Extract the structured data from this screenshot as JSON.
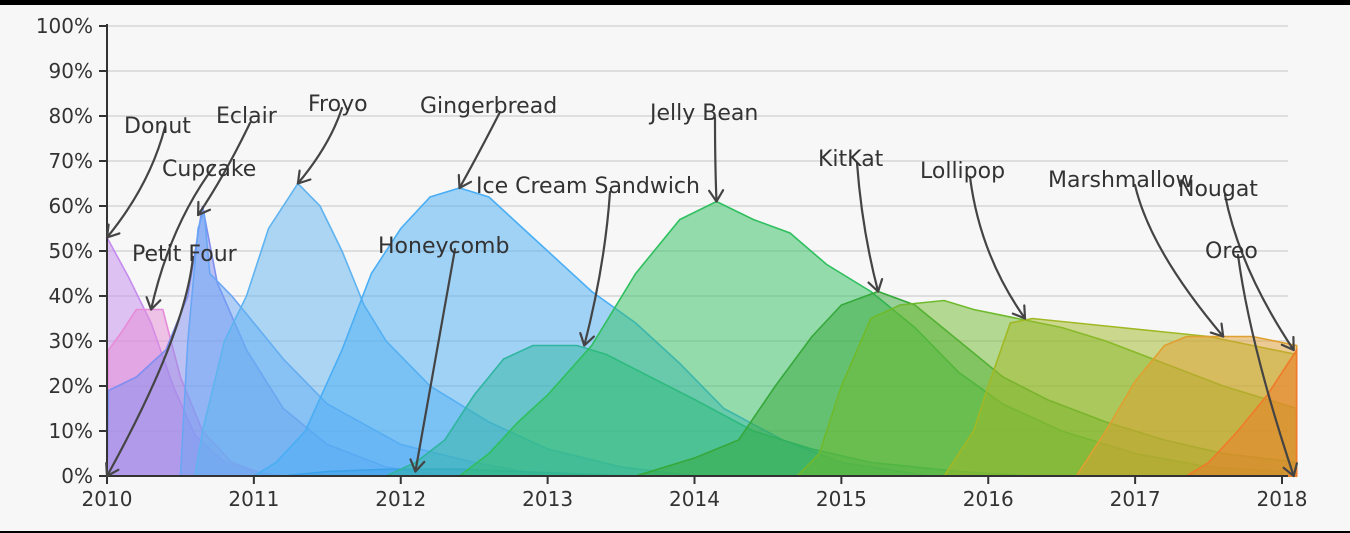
{
  "chart_data": {
    "type": "area",
    "title": "",
    "xlabel": "",
    "ylabel": "",
    "xlim": [
      2010,
      2018.1
    ],
    "ylim": [
      0,
      100
    ],
    "grid": true,
    "legend": "none",
    "x_ticks": [
      "2010",
      "2011",
      "2012",
      "2013",
      "2014",
      "2015",
      "2016",
      "2017",
      "2018"
    ],
    "y_ticks": [
      "0%",
      "10%",
      "20%",
      "30%",
      "40%",
      "50%",
      "60%",
      "70%",
      "80%",
      "90%",
      "100%"
    ],
    "series": [
      {
        "name": "Donut",
        "color": "#c58cf0",
        "points": [
          [
            2010.0,
            53
          ],
          [
            2010.15,
            44
          ],
          [
            2010.3,
            34
          ],
          [
            2010.45,
            20
          ],
          [
            2010.6,
            9
          ],
          [
            2010.8,
            3
          ],
          [
            2011.0,
            1
          ],
          [
            2011.2,
            0
          ]
        ]
      },
      {
        "name": "Petit Four",
        "color": "#e68bd8",
        "points": [
          [
            2010.0,
            0
          ],
          [
            2010.01,
            28
          ],
          [
            2010.1,
            32
          ],
          [
            2010.2,
            37
          ],
          [
            2010.38,
            37
          ],
          [
            2010.5,
            22
          ],
          [
            2010.65,
            10
          ],
          [
            2010.85,
            3
          ],
          [
            2011.1,
            0
          ]
        ]
      },
      {
        "name": "Cupcake",
        "color": "#7f8ef0",
        "points": [
          [
            2010.0,
            0
          ],
          [
            2010.01,
            19
          ],
          [
            2010.2,
            22
          ],
          [
            2010.4,
            28
          ],
          [
            2010.55,
            40
          ],
          [
            2010.65,
            60
          ],
          [
            2010.75,
            43
          ],
          [
            2010.95,
            28
          ],
          [
            2011.2,
            15
          ],
          [
            2011.5,
            7
          ],
          [
            2011.9,
            2
          ],
          [
            2012.3,
            0
          ]
        ]
      },
      {
        "name": "Eclair",
        "color": "#6aa6f5",
        "points": [
          [
            2010.5,
            0
          ],
          [
            2010.55,
            30
          ],
          [
            2010.62,
            55
          ],
          [
            2010.66,
            59
          ],
          [
            2010.7,
            45
          ],
          [
            2010.85,
            40
          ],
          [
            2011.0,
            34
          ],
          [
            2011.2,
            26
          ],
          [
            2011.5,
            16
          ],
          [
            2012.0,
            7
          ],
          [
            2012.5,
            3
          ],
          [
            2013.0,
            0
          ]
        ]
      },
      {
        "name": "Froyo",
        "color": "#5fb3f0",
        "points": [
          [
            2010.6,
            0
          ],
          [
            2010.65,
            10
          ],
          [
            2010.8,
            30
          ],
          [
            2010.95,
            40
          ],
          [
            2011.1,
            55
          ],
          [
            2011.3,
            65
          ],
          [
            2011.45,
            60
          ],
          [
            2011.6,
            50
          ],
          [
            2011.75,
            38
          ],
          [
            2011.9,
            30
          ],
          [
            2012.2,
            20
          ],
          [
            2012.6,
            12
          ],
          [
            2013.0,
            6
          ],
          [
            2013.5,
            2
          ],
          [
            2014.0,
            0
          ]
        ]
      },
      {
        "name": "Gingerbread",
        "color": "#4aaef5",
        "points": [
          [
            2011.0,
            0
          ],
          [
            2011.15,
            3
          ],
          [
            2011.35,
            10
          ],
          [
            2011.6,
            28
          ],
          [
            2011.8,
            45
          ],
          [
            2012.0,
            55
          ],
          [
            2012.2,
            62
          ],
          [
            2012.4,
            64
          ],
          [
            2012.6,
            62
          ],
          [
            2012.8,
            56
          ],
          [
            2013.0,
            50
          ],
          [
            2013.3,
            41
          ],
          [
            2013.6,
            34
          ],
          [
            2013.9,
            25
          ],
          [
            2014.2,
            15
          ],
          [
            2014.6,
            8
          ],
          [
            2015.0,
            3
          ],
          [
            2015.6,
            0
          ]
        ]
      },
      {
        "name": "Honeycomb",
        "color": "#3ca0e8",
        "points": [
          [
            2011.2,
            0
          ],
          [
            2011.5,
            1
          ],
          [
            2011.9,
            1.5
          ],
          [
            2012.4,
            1.5
          ],
          [
            2012.8,
            1
          ],
          [
            2013.2,
            0.5
          ],
          [
            2013.6,
            0
          ]
        ]
      },
      {
        "name": "Ice Cream Sandwich",
        "color": "#2fb5a0",
        "points": [
          [
            2011.9,
            0
          ],
          [
            2012.1,
            3
          ],
          [
            2012.3,
            8
          ],
          [
            2012.5,
            18
          ],
          [
            2012.7,
            26
          ],
          [
            2012.9,
            29
          ],
          [
            2013.2,
            29
          ],
          [
            2013.4,
            27
          ],
          [
            2013.7,
            22
          ],
          [
            2014.0,
            17
          ],
          [
            2014.4,
            10
          ],
          [
            2014.8,
            6
          ],
          [
            2015.2,
            3
          ],
          [
            2015.8,
            1
          ],
          [
            2016.3,
            0
          ]
        ]
      },
      {
        "name": "Jelly Bean",
        "color": "#2fbf5f",
        "points": [
          [
            2012.4,
            0
          ],
          [
            2012.6,
            5
          ],
          [
            2012.8,
            12
          ],
          [
            2013.0,
            18
          ],
          [
            2013.3,
            29
          ],
          [
            2013.6,
            45
          ],
          [
            2013.9,
            57
          ],
          [
            2014.15,
            61
          ],
          [
            2014.4,
            57
          ],
          [
            2014.65,
            54
          ],
          [
            2014.9,
            47
          ],
          [
            2015.2,
            41
          ],
          [
            2015.5,
            33
          ],
          [
            2015.8,
            23
          ],
          [
            2016.1,
            16
          ],
          [
            2016.5,
            10
          ],
          [
            2017.0,
            5
          ],
          [
            2017.5,
            2
          ],
          [
            2018.0,
            1
          ]
        ]
      },
      {
        "name": "KitKat",
        "color": "#36a83a",
        "points": [
          [
            2013.6,
            0
          ],
          [
            2013.8,
            2
          ],
          [
            2014.0,
            4
          ],
          [
            2014.3,
            8
          ],
          [
            2014.55,
            20
          ],
          [
            2014.8,
            31
          ],
          [
            2015.0,
            38
          ],
          [
            2015.25,
            41
          ],
          [
            2015.5,
            38
          ],
          [
            2015.8,
            30
          ],
          [
            2016.1,
            22
          ],
          [
            2016.4,
            17
          ],
          [
            2016.8,
            12
          ],
          [
            2017.2,
            8
          ],
          [
            2017.6,
            5
          ],
          [
            2018.1,
            3
          ]
        ]
      },
      {
        "name": "Lollipop",
        "color": "#6fba2c",
        "points": [
          [
            2014.7,
            0
          ],
          [
            2014.85,
            5
          ],
          [
            2015.0,
            20
          ],
          [
            2015.2,
            35
          ],
          [
            2015.4,
            38
          ],
          [
            2015.7,
            39
          ],
          [
            2015.9,
            37
          ],
          [
            2016.2,
            35
          ],
          [
            2016.5,
            33
          ],
          [
            2016.8,
            30
          ],
          [
            2017.2,
            25
          ],
          [
            2017.6,
            20
          ],
          [
            2018.1,
            15
          ]
        ]
      },
      {
        "name": "Marshmallow",
        "color": "#a1b825",
        "points": [
          [
            2015.7,
            0
          ],
          [
            2015.9,
            10
          ],
          [
            2016.0,
            20
          ],
          [
            2016.15,
            34
          ],
          [
            2016.3,
            35
          ],
          [
            2016.6,
            34
          ],
          [
            2016.9,
            33
          ],
          [
            2017.2,
            32
          ],
          [
            2017.5,
            31
          ],
          [
            2017.8,
            29
          ],
          [
            2018.1,
            27
          ]
        ]
      },
      {
        "name": "Nougat",
        "color": "#e0a030",
        "points": [
          [
            2016.6,
            0
          ],
          [
            2016.8,
            10
          ],
          [
            2017.0,
            21
          ],
          [
            2017.2,
            29
          ],
          [
            2017.35,
            31
          ],
          [
            2017.6,
            31
          ],
          [
            2017.8,
            31
          ],
          [
            2018.1,
            29
          ]
        ]
      },
      {
        "name": "Oreo",
        "color": "#f07a28",
        "points": [
          [
            2017.35,
            0
          ],
          [
            2017.5,
            3
          ],
          [
            2017.7,
            10
          ],
          [
            2017.9,
            18
          ],
          [
            2018.1,
            28
          ]
        ]
      }
    ],
    "annotations": [
      {
        "text": "Donut",
        "x": 2010.0,
        "y": 53
      },
      {
        "text": "Petit Four",
        "x": 2010.0,
        "y": 0
      },
      {
        "text": "Cupcake",
        "x": 2010.3,
        "y": 37
      },
      {
        "text": "Eclair",
        "x": 2010.62,
        "y": 58
      },
      {
        "text": "Froyo",
        "x": 2011.3,
        "y": 65
      },
      {
        "text": "Gingerbread",
        "x": 2012.4,
        "y": 64
      },
      {
        "text": "Honeycomb",
        "x": 2012.1,
        "y": 1
      },
      {
        "text": "Ice Cream Sandwich",
        "x": 2013.25,
        "y": 29
      },
      {
        "text": "Jelly Bean",
        "x": 2014.15,
        "y": 61
      },
      {
        "text": "KitKat",
        "x": 2015.25,
        "y": 41
      },
      {
        "text": "Lollipop",
        "x": 2016.25,
        "y": 35
      },
      {
        "text": "Marshmallow",
        "x": 2017.6,
        "y": 31
      },
      {
        "text": "Nougat",
        "x": 2018.08,
        "y": 28
      },
      {
        "text": "Oreo",
        "x": 2018.08,
        "y": 0
      }
    ]
  }
}
